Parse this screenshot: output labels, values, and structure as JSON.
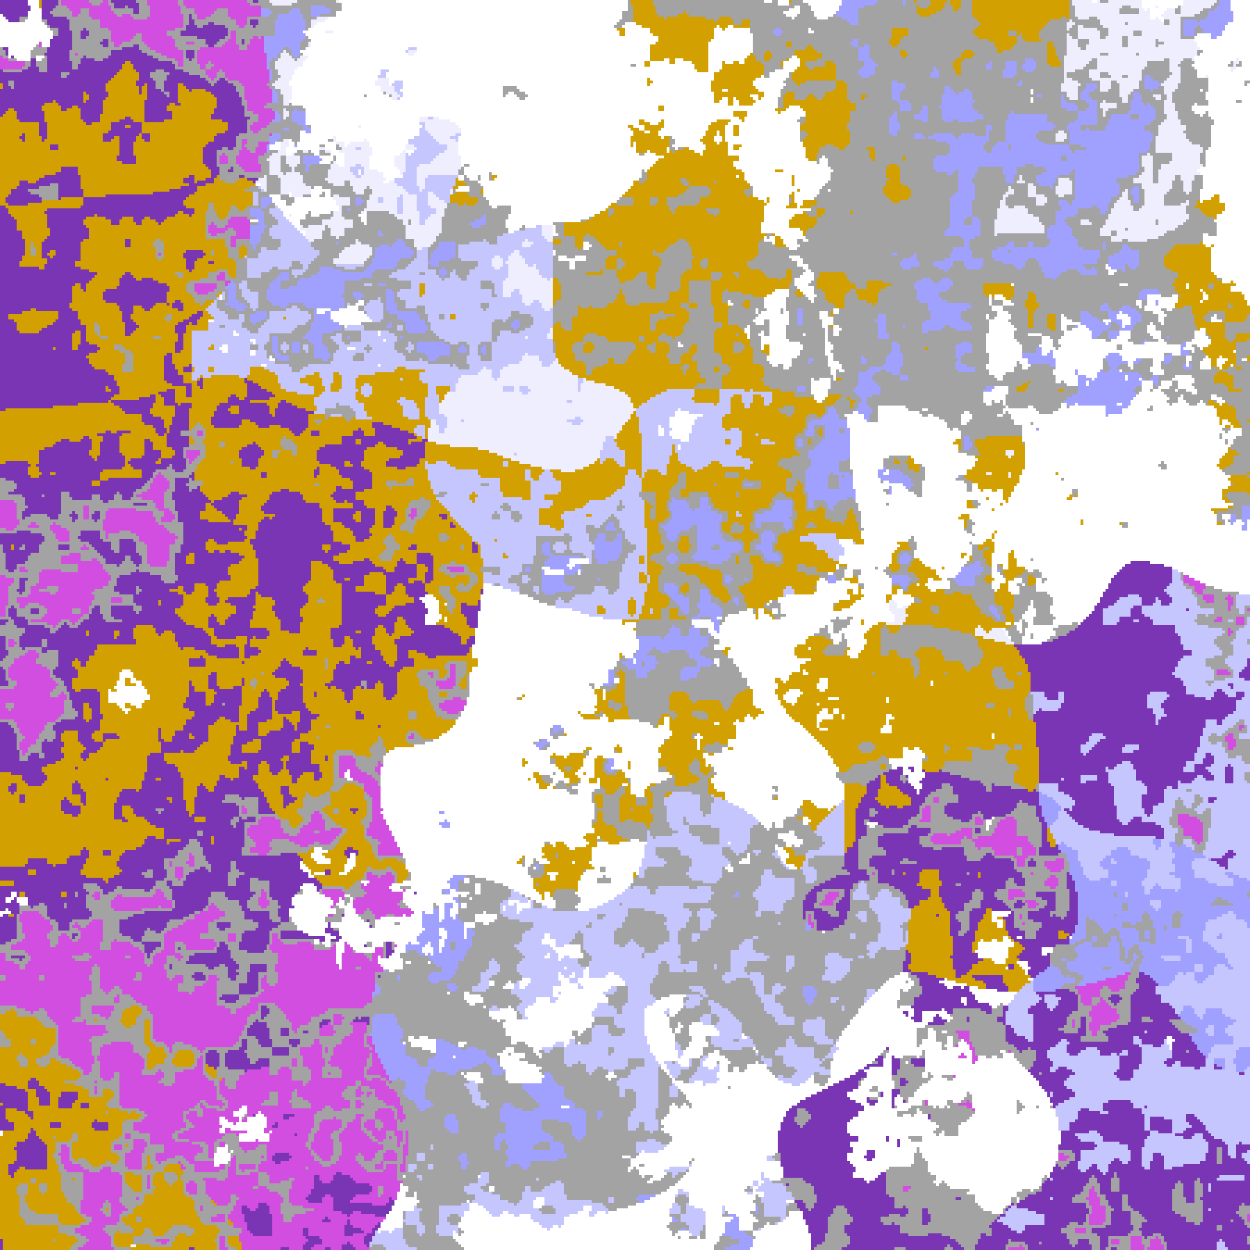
{
  "map": {
    "kind": "false-color satellite cloud classification",
    "palette": {
      "clear": "#ffffff",
      "gold": "#d2a000",
      "purple": "#7a35b5",
      "magenta": "#d24ee0",
      "lavender": "#c6c6ff",
      "periwinkle": "#a0a0ff",
      "gray": "#a3a3a3",
      "pale": "#eeeeff"
    }
  }
}
